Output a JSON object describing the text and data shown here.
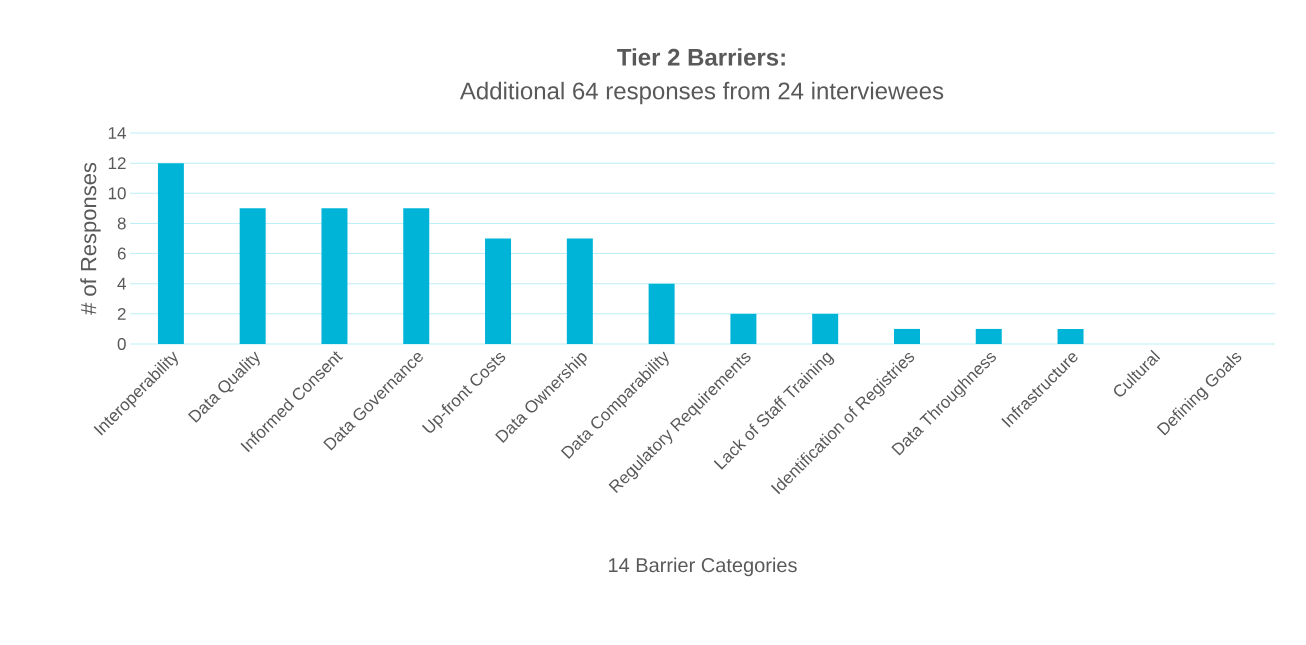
{
  "chart_data": {
    "type": "bar",
    "title": "Tier 2 Barriers:",
    "subtitle": "Additional 64 responses from 24 interviewees",
    "xlabel": "14 Barrier Categories",
    "ylabel": "# of Responses",
    "categories": [
      "Interoperability",
      "Data Quality",
      "Informed Consent",
      "Data Governance",
      "Up-front Costs",
      "Data Ownership",
      "Data Comparability",
      "Regulatory Requirements",
      "Lack of Staff Training",
      "Identification of Registries",
      "Data Throughness",
      "Infrastructure",
      "Cultural",
      "Defining Goals"
    ],
    "values": [
      12,
      9,
      9,
      9,
      7,
      7,
      4,
      2,
      2,
      1,
      1,
      1,
      0,
      0
    ],
    "color": "#00b4d8",
    "ylim": [
      0,
      14
    ],
    "yticks": [
      0,
      2,
      4,
      6,
      8,
      10,
      12,
      14
    ],
    "grid": "y"
  }
}
